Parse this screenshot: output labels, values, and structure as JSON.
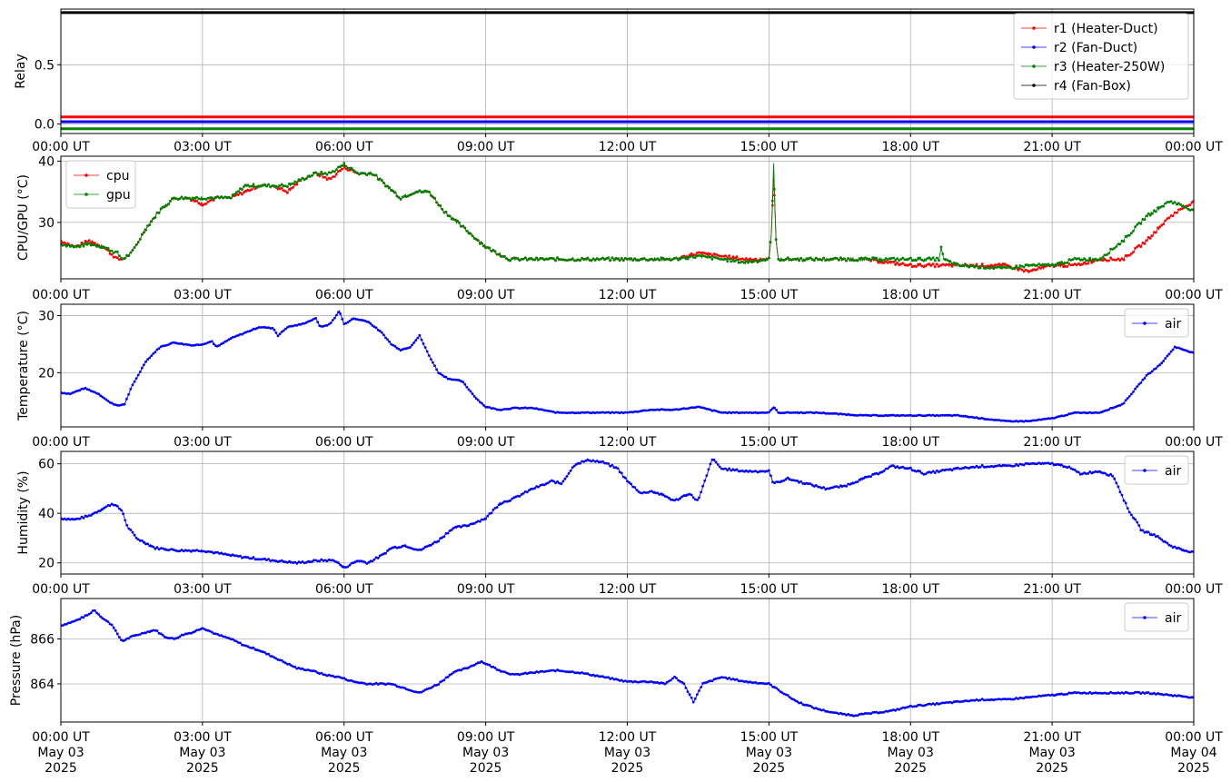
{
  "x_axis": {
    "time_labels": [
      "00:00 UT",
      "03:00 UT",
      "06:00 UT",
      "09:00 UT",
      "12:00 UT",
      "15:00 UT",
      "18:00 UT",
      "21:00 UT",
      "00:00 UT"
    ],
    "date_labels": [
      "May 03",
      "May 03",
      "May 03",
      "May 03",
      "May 03",
      "May 03",
      "May 03",
      "May 03",
      "May 04"
    ],
    "year_labels": [
      "2025",
      "2025",
      "2025",
      "2025",
      "2025",
      "2025",
      "2025",
      "2025",
      "2025"
    ]
  },
  "chart_data": [
    {
      "type": "line",
      "ylabel": "Relay",
      "x_range_hours": [
        0,
        24
      ],
      "ylim": [
        -0.08,
        0.97
      ],
      "yticks": [
        0.0,
        0.5
      ],
      "ytick_labels": [
        "0.0",
        "0.5"
      ],
      "grid": true,
      "legend_placement": "top-right",
      "series": [
        {
          "name": "r1 (Heater-Duct)",
          "color": "#ff0000",
          "x": [
            0,
            24
          ],
          "y": [
            0.06,
            0.06
          ]
        },
        {
          "name": "r2 (Fan-Duct)",
          "color": "#0000ff",
          "x": [
            0,
            24
          ],
          "y": [
            0.02,
            0.02
          ]
        },
        {
          "name": "r3 (Heater-250W)",
          "color": "#008000",
          "x": [
            0,
            24
          ],
          "y": [
            -0.04,
            -0.04
          ]
        },
        {
          "name": "r4 (Fan-Box)",
          "color": "#000000",
          "x": [
            0,
            24
          ],
          "y": [
            0.94,
            0.94
          ]
        }
      ]
    },
    {
      "type": "line",
      "ylabel": "CPU/GPU (°C)",
      "x_range_hours": [
        0,
        24
      ],
      "ylim": [
        20.8,
        40.8
      ],
      "yticks": [
        30,
        40
      ],
      "ytick_labels": [
        "30",
        "40"
      ],
      "grid": true,
      "legend_placement": "top-left",
      "series": [
        {
          "name": "cpu",
          "color": "#ff0000",
          "x": [
            0,
            0.3,
            0.6,
            0.9,
            1.2,
            1.3,
            1.5,
            1.8,
            2.1,
            2.4,
            2.7,
            3.0,
            3.3,
            3.6,
            3.9,
            4.2,
            4.5,
            4.8,
            5.1,
            5.4,
            5.7,
            6.0,
            6.3,
            6.6,
            6.9,
            7.2,
            7.5,
            7.8,
            8.1,
            8.4,
            8.7,
            9.0,
            9.5,
            10.5,
            12.0,
            13.0,
            13.5,
            14.5,
            15.0,
            15.05,
            15.1,
            15.15,
            15.2,
            16.0,
            17.0,
            18.0,
            19.0,
            20.0,
            20.5,
            21.0,
            21.5,
            22.0,
            22.5,
            23.0,
            23.5,
            24.0
          ],
          "y": [
            27,
            26,
            27,
            26,
            24,
            24,
            25,
            29,
            32,
            34,
            34,
            33,
            34,
            34,
            35,
            36,
            36,
            35,
            37,
            38,
            37,
            39,
            38,
            38,
            36,
            34,
            35,
            35,
            32,
            30,
            28,
            26,
            24,
            24,
            24,
            24,
            25,
            24,
            24,
            28,
            38,
            27,
            24,
            24,
            24,
            23,
            23,
            23,
            22,
            23,
            23,
            24,
            24,
            27,
            31,
            33.5
          ]
        },
        {
          "name": "gpu",
          "color": "#008000",
          "x": [
            0,
            0.3,
            0.6,
            0.9,
            1.2,
            1.3,
            1.5,
            1.8,
            2.1,
            2.4,
            2.7,
            3.0,
            3.3,
            3.6,
            3.9,
            4.2,
            4.5,
            4.8,
            5.1,
            5.4,
            5.7,
            6.0,
            6.3,
            6.6,
            6.9,
            7.2,
            7.5,
            7.8,
            8.1,
            8.4,
            8.7,
            9.0,
            9.5,
            10.5,
            12.0,
            13.0,
            13.5,
            14.5,
            15.0,
            15.05,
            15.1,
            15.15,
            15.2,
            16.0,
            17.0,
            18.0,
            18.6,
            18.65,
            18.7,
            19.0,
            20.0,
            20.5,
            21.0,
            21.5,
            22.0,
            22.5,
            23.0,
            23.5,
            24.0
          ],
          "y": [
            26.5,
            26,
            26.5,
            26,
            25,
            24,
            25,
            29,
            32,
            34,
            34,
            34,
            34,
            34,
            36,
            36,
            36,
            36,
            37,
            38,
            38,
            39.5,
            38,
            38,
            36,
            34,
            35,
            35,
            32,
            30,
            28,
            26,
            24,
            24,
            24,
            24,
            24.5,
            23.5,
            24,
            28,
            39.5,
            27,
            24,
            24,
            24,
            24,
            24,
            26,
            24,
            23,
            22.5,
            23,
            23,
            24,
            24,
            27,
            31,
            33.5,
            32
          ]
        }
      ]
    },
    {
      "type": "line",
      "ylabel": "Temperature (°C)",
      "x_range_hours": [
        0,
        24
      ],
      "ylim": [
        10.5,
        32
      ],
      "yticks": [
        20,
        30
      ],
      "ytick_labels": [
        "20",
        "30"
      ],
      "grid": true,
      "legend_placement": "top-right",
      "series": [
        {
          "name": "air",
          "color": "#0000ff",
          "x": [
            0,
            0.2,
            0.5,
            0.8,
            1.0,
            1.2,
            1.35,
            1.5,
            1.8,
            2.1,
            2.4,
            2.6,
            2.8,
            3.0,
            3.2,
            3.3,
            3.6,
            3.9,
            4.2,
            4.5,
            4.6,
            4.8,
            5.1,
            5.4,
            5.5,
            5.7,
            5.9,
            6.0,
            6.2,
            6.5,
            6.8,
            7.0,
            7.2,
            7.4,
            7.6,
            7.8,
            8.0,
            8.2,
            8.5,
            8.8,
            9.0,
            9.3,
            9.6,
            10.0,
            10.5,
            11.0,
            12.0,
            12.5,
            13.0,
            13.5,
            14.0,
            15.0,
            15.1,
            15.2,
            16.0,
            17.0,
            18.0,
            19.0,
            19.5,
            20.0,
            20.5,
            21.0,
            21.5,
            22.0,
            22.5,
            23.0,
            23.3,
            23.6,
            24.0
          ],
          "y": [
            16.5,
            16.3,
            17.3,
            16.3,
            15.0,
            14.2,
            14.5,
            17.5,
            22,
            24.5,
            25.3,
            25,
            24.8,
            25,
            25.5,
            24.5,
            26,
            27,
            28,
            27.8,
            26.5,
            28,
            28.5,
            29.5,
            28,
            28.5,
            30.8,
            28.5,
            29.5,
            29,
            27,
            25,
            24,
            24.5,
            26.5,
            23,
            20,
            19,
            18.5,
            15.5,
            14,
            13.5,
            13.8,
            13.8,
            13,
            13,
            13,
            13.5,
            13.5,
            14,
            13,
            13,
            14,
            13,
            13,
            12.5,
            12.5,
            12.5,
            12,
            11.5,
            11.5,
            12,
            13,
            13,
            14.5,
            19.5,
            21.5,
            24.5,
            23.5
          ]
        }
      ]
    },
    {
      "type": "line",
      "ylabel": "Humidity (%)",
      "x_range_hours": [
        0,
        24
      ],
      "ylim": [
        15.5,
        65
      ],
      "yticks": [
        20,
        40,
        60
      ],
      "ytick_labels": [
        "20",
        "40",
        "60"
      ],
      "grid": true,
      "legend_placement": "top-right",
      "series": [
        {
          "name": "air",
          "color": "#0000ff",
          "x": [
            0,
            0.3,
            0.6,
            0.9,
            1.1,
            1.3,
            1.4,
            1.6,
            2.0,
            2.5,
            3.0,
            3.3,
            3.6,
            4.0,
            4.5,
            5.0,
            5.5,
            5.8,
            6.0,
            6.3,
            6.5,
            6.8,
            7.0,
            7.3,
            7.6,
            8.0,
            8.3,
            8.6,
            9.0,
            9.3,
            9.6,
            10.0,
            10.3,
            10.4,
            10.6,
            10.9,
            11.2,
            11.5,
            11.8,
            12.0,
            12.3,
            12.5,
            12.8,
            13.0,
            13.3,
            13.5,
            13.8,
            14.0,
            14.5,
            15.0,
            15.1,
            15.4,
            15.8,
            16.2,
            16.6,
            17.0,
            17.3,
            17.6,
            18.0,
            18.3,
            18.6,
            19.0,
            19.5,
            20.0,
            20.5,
            21.0,
            21.3,
            21.6,
            22.0,
            22.3,
            22.6,
            22.9,
            23.2,
            23.5,
            23.8,
            24.0
          ],
          "y": [
            38,
            37.5,
            39,
            42,
            44,
            41,
            35,
            30,
            26,
            25,
            25,
            24,
            23,
            22,
            21,
            20,
            21,
            21,
            18,
            21,
            20,
            23,
            26,
            27,
            25,
            29,
            34,
            35,
            38,
            44,
            46,
            50,
            52,
            53,
            52,
            60,
            61.5,
            60.5,
            58,
            53,
            48,
            49,
            47,
            45,
            48,
            45,
            62,
            58,
            57,
            57,
            52,
            54,
            52,
            50,
            51,
            54,
            56,
            59,
            58,
            56,
            57,
            58,
            59,
            59,
            60,
            60,
            59,
            56,
            57,
            55,
            42,
            33,
            31,
            27,
            25,
            24.5
          ]
        }
      ]
    },
    {
      "type": "line",
      "ylabel": "Pressure (hPa)",
      "x_range_hours": [
        0,
        24
      ],
      "ylim": [
        862.3,
        867.8
      ],
      "yticks": [
        864,
        866
      ],
      "ytick_labels": [
        "864",
        "866"
      ],
      "grid": true,
      "legend_placement": "top-right",
      "series": [
        {
          "name": "air",
          "color": "#0000ff",
          "x": [
            0,
            0.3,
            0.6,
            0.7,
            0.9,
            1.1,
            1.2,
            1.3,
            1.5,
            1.8,
            2.0,
            2.2,
            2.4,
            2.6,
            2.8,
            3.0,
            3.3,
            3.6,
            3.9,
            4.2,
            4.5,
            4.8,
            5.0,
            5.3,
            5.6,
            5.9,
            6.2,
            6.5,
            6.8,
            7.0,
            7.3,
            7.6,
            7.8,
            8.0,
            8.3,
            8.6,
            8.9,
            9.0,
            9.3,
            9.6,
            10.0,
            10.5,
            11.0,
            11.5,
            12.0,
            12.5,
            12.8,
            13.0,
            13.2,
            13.4,
            13.6,
            14.0,
            14.5,
            15.0,
            15.3,
            15.6,
            16.0,
            16.4,
            16.8,
            17.2,
            17.6,
            18.0,
            18.5,
            19.0,
            19.5,
            20.0,
            20.5,
            21.0,
            21.5,
            22.0,
            22.5,
            23.0,
            23.5,
            24.0
          ],
          "y": [
            866.6,
            866.8,
            867.1,
            867.3,
            866.9,
            866.6,
            866.2,
            865.9,
            866.1,
            866.3,
            866.4,
            866.1,
            866.0,
            866.2,
            866.3,
            866.5,
            866.2,
            866.0,
            865.7,
            865.5,
            865.2,
            864.9,
            864.7,
            864.6,
            864.4,
            864.3,
            864.1,
            864.0,
            864.0,
            864.0,
            863.8,
            863.6,
            863.8,
            864.0,
            864.5,
            864.7,
            865.0,
            864.9,
            864.6,
            864.4,
            864.5,
            864.6,
            864.5,
            864.3,
            864.1,
            864.1,
            864.0,
            864.3,
            864.0,
            863.2,
            864.0,
            864.3,
            864.1,
            864.0,
            863.6,
            863.2,
            862.9,
            862.7,
            862.6,
            862.7,
            862.8,
            863.0,
            863.1,
            863.2,
            863.3,
            863.3,
            863.4,
            863.5,
            863.6,
            863.6,
            863.6,
            863.6,
            863.5,
            863.4
          ]
        }
      ]
    }
  ]
}
